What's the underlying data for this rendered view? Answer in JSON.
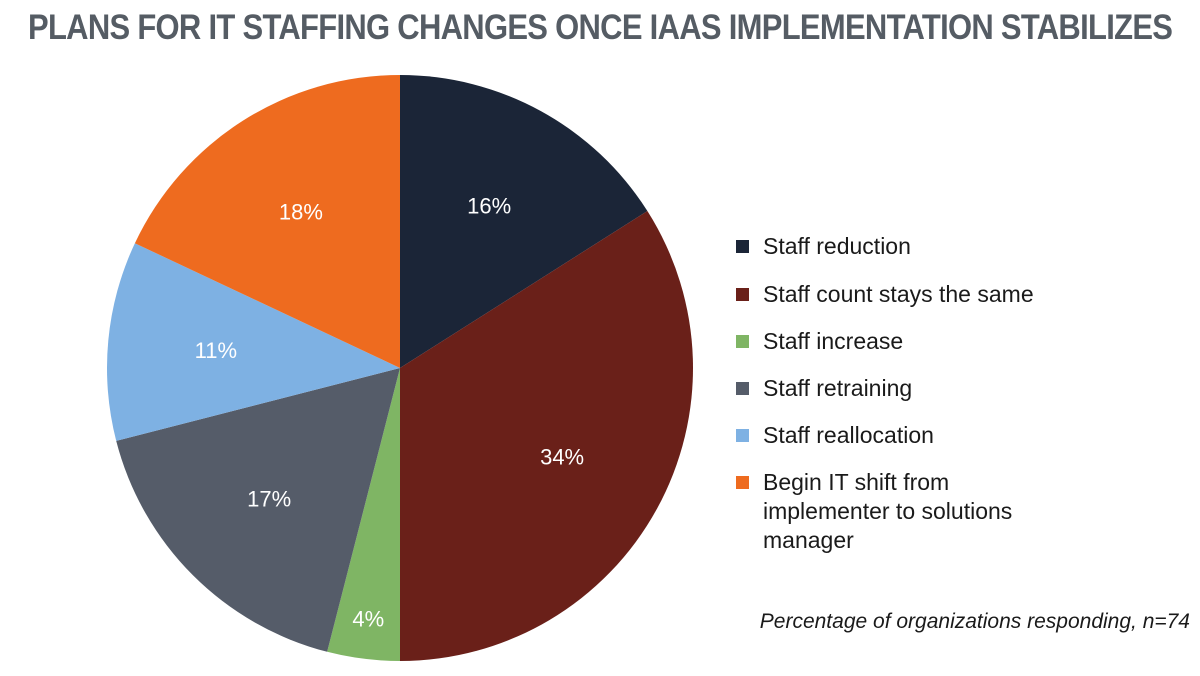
{
  "title": "PLANS FOR IT STAFFING CHANGES ONCE IAAS IMPLEMENTATION STABILIZES",
  "footnote": "Percentage of organizations responding, n=74",
  "chart_data": {
    "type": "pie",
    "title": "PLANS FOR IT STAFFING CHANGES ONCE IAAS IMPLEMENTATION STABILIZES",
    "legend_position": "right",
    "start": "12 o'clock",
    "direction": "clockwise",
    "slices": [
      {
        "label": "Staff reduction",
        "value": 16,
        "display": "16%",
        "color": "#1b2537"
      },
      {
        "label": "Staff count stays the same",
        "value": 34,
        "display": "34%",
        "color": "#6a2019"
      },
      {
        "label": "Staff increase",
        "value": 4,
        "display": "4%",
        "color": "#7fb564"
      },
      {
        "label": "Staff retraining",
        "value": 17,
        "display": "17%",
        "color": "#555c69"
      },
      {
        "label": "Staff reallocation",
        "value": 11,
        "display": "11%",
        "color": "#7eb1e3"
      },
      {
        "label": "Begin IT shift from implementer to solutions manager",
        "value": 18,
        "display": "18%",
        "color": "#ee6b1f"
      }
    ]
  }
}
